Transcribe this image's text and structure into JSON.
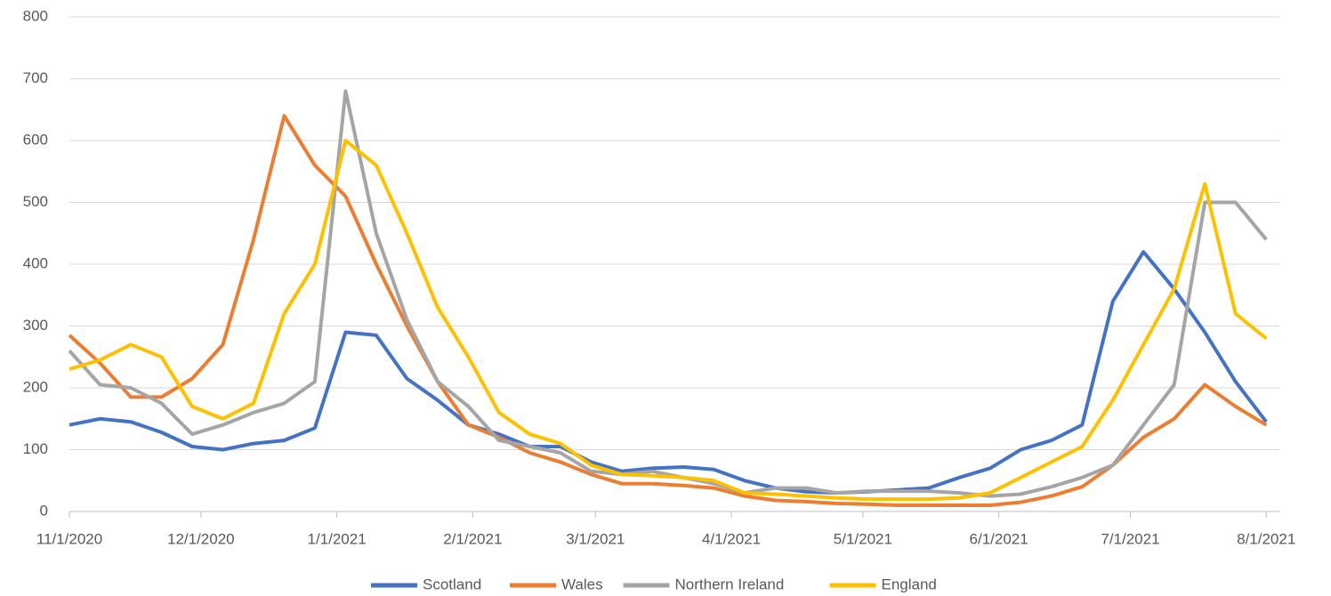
{
  "chart_data": {
    "type": "line",
    "x": [
      "11/1/2020",
      "11/8/2020",
      "11/15/2020",
      "11/22/2020",
      "11/29/2020",
      "12/6/2020",
      "12/13/2020",
      "12/20/2020",
      "12/27/2020",
      "1/3/2021",
      "1/10/2021",
      "1/17/2021",
      "1/24/2021",
      "1/31/2021",
      "2/7/2021",
      "2/14/2021",
      "2/21/2021",
      "2/28/2021",
      "3/7/2021",
      "3/14/2021",
      "3/21/2021",
      "3/28/2021",
      "4/4/2021",
      "4/11/2021",
      "4/18/2021",
      "4/25/2021",
      "5/2/2021",
      "5/9/2021",
      "5/16/2021",
      "5/23/2021",
      "5/30/2021",
      "6/6/2021",
      "6/13/2021",
      "6/20/2021",
      "6/27/2021",
      "7/4/2021",
      "7/11/2021",
      "7/18/2021",
      "7/25/2021",
      "8/1/2021"
    ],
    "series": [
      {
        "name": "Scotland",
        "color": "#4472c4",
        "values": [
          140,
          150,
          145,
          128,
          105,
          100,
          110,
          115,
          135,
          290,
          285,
          215,
          180,
          140,
          125,
          105,
          105,
          80,
          65,
          70,
          72,
          68,
          50,
          38,
          32,
          30,
          32,
          35,
          38,
          55,
          70,
          100,
          115,
          140,
          340,
          420,
          360,
          290,
          210,
          145
        ]
      },
      {
        "name": "Wales",
        "color": "#ed7d31",
        "values": [
          285,
          240,
          185,
          185,
          215,
          270,
          440,
          640,
          560,
          510,
          400,
          300,
          210,
          140,
          120,
          95,
          80,
          60,
          45,
          45,
          42,
          38,
          25,
          18,
          16,
          13,
          12,
          10,
          10,
          10,
          10,
          15,
          25,
          40,
          75,
          120,
          150,
          205,
          170,
          140
        ]
      },
      {
        "name": "Northern Ireland",
        "color": "#a5a5a5",
        "values": [
          260,
          205,
          200,
          175,
          125,
          140,
          160,
          175,
          210,
          680,
          450,
          310,
          210,
          170,
          115,
          105,
          95,
          65,
          60,
          65,
          55,
          45,
          30,
          38,
          38,
          30,
          33,
          33,
          33,
          30,
          25,
          28,
          40,
          55,
          75,
          140,
          205,
          500,
          500,
          440
        ]
      },
      {
        "name": "England",
        "color": "#ffc000",
        "values": [
          230,
          245,
          270,
          250,
          170,
          150,
          175,
          320,
          400,
          600,
          560,
          450,
          330,
          250,
          160,
          125,
          110,
          75,
          60,
          58,
          55,
          50,
          30,
          28,
          25,
          22,
          20,
          20,
          20,
          22,
          30,
          55,
          80,
          105,
          180,
          270,
          360,
          530,
          320,
          280
        ]
      }
    ],
    "xlim": [
      "11/1/2020",
      "8/4/2021"
    ],
    "xticks": [
      "11/1/2020",
      "12/1/2020",
      "1/1/2021",
      "2/1/2021",
      "3/1/2021",
      "4/1/2021",
      "5/1/2021",
      "6/1/2021",
      "7/1/2021",
      "8/1/2021"
    ],
    "ylim": [
      0,
      800
    ],
    "yticks": [
      0,
      100,
      200,
      300,
      400,
      500,
      600,
      700,
      800
    ],
    "grid": true,
    "legend": "bottom"
  }
}
